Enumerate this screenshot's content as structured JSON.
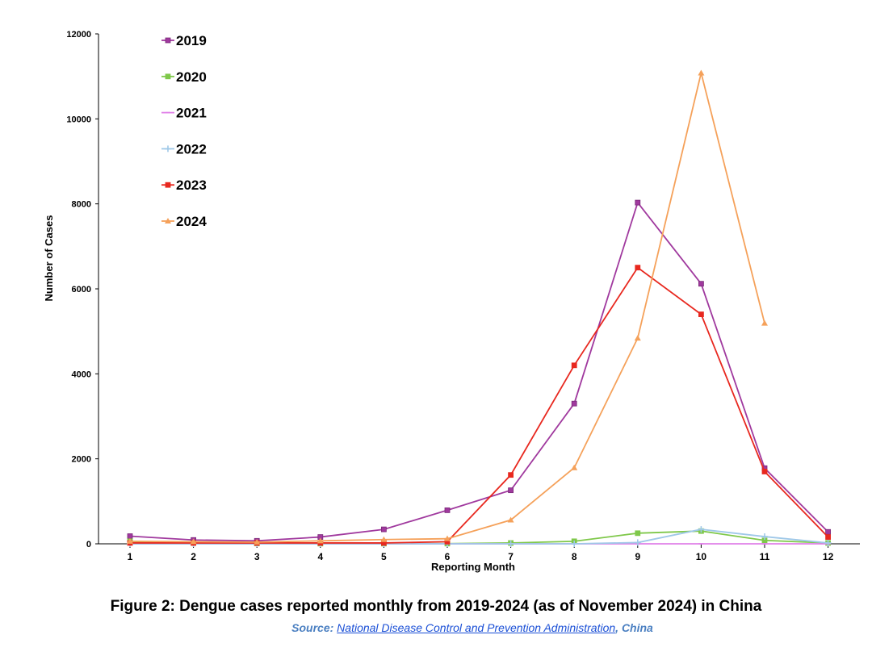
{
  "figure": {
    "caption": "Figure 2: Dengue cases reported monthly from 2019-2024 (as of November 2024) in China",
    "source_prefix": "Source: ",
    "source_link": "National Disease Control and Prevention Administration",
    "source_suffix": ", China"
  },
  "chart_data": {
    "type": "line",
    "title": "",
    "xlabel": "Reporting Month",
    "ylabel": "Number of Cases",
    "x": [
      1,
      2,
      3,
      4,
      5,
      6,
      7,
      8,
      9,
      10,
      11,
      12
    ],
    "ylim": [
      0,
      12000
    ],
    "yticks": [
      0,
      2000,
      4000,
      6000,
      8000,
      10000,
      12000
    ],
    "grid": false,
    "legend_position": "top-left",
    "series": [
      {
        "name": "2019",
        "color": "#a0399e",
        "marker": "square",
        "values": [
          180,
          90,
          70,
          160,
          340,
          790,
          1260,
          3300,
          8030,
          6120,
          1780,
          280
        ]
      },
      {
        "name": "2020",
        "color": "#7fc84a",
        "marker": "square",
        "values": [
          60,
          20,
          10,
          5,
          5,
          5,
          20,
          60,
          250,
          300,
          80,
          20
        ]
      },
      {
        "name": "2021",
        "color": "#e080e8",
        "marker": "dash",
        "values": [
          0,
          0,
          0,
          0,
          0,
          0,
          0,
          0,
          0,
          0,
          0,
          0
        ]
      },
      {
        "name": "2022",
        "color": "#9fc8e8",
        "marker": "plus",
        "values": [
          0,
          0,
          0,
          0,
          0,
          0,
          0,
          0,
          30,
          340,
          170,
          20
        ]
      },
      {
        "name": "2023",
        "color": "#e8281f",
        "marker": "square",
        "values": [
          20,
          20,
          20,
          20,
          20,
          50,
          1620,
          4200,
          6500,
          5400,
          1700,
          160
        ]
      },
      {
        "name": "2024",
        "color": "#f5a15a",
        "marker": "triangle",
        "values": [
          60,
          50,
          40,
          70,
          100,
          120,
          560,
          1790,
          4840,
          11080,
          5190,
          null
        ]
      }
    ]
  }
}
